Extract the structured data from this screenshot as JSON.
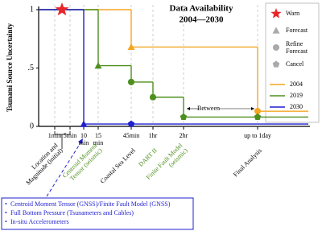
{
  "chart_data": {
    "type": "step",
    "title": [
      "Data Availability",
      "2004—2030"
    ],
    "y_label": "Tsunami Source Uncertainty",
    "categories": [
      "1min",
      "5min",
      "10 min",
      "15 min",
      "45min",
      "1hr",
      "2hr",
      "up to 1day"
    ],
    "ylim": [
      0,
      1
    ],
    "yticks": [
      0,
      {
        "value": 0.5,
        "label": ".5"
      },
      1
    ],
    "series": [
      {
        "name": "2004",
        "color": "#f5a623",
        "values": [
          1,
          1,
          1,
          1,
          0.68,
          0.68,
          0.68,
          0.13
        ],
        "markers": [
          null,
          null,
          null,
          null,
          "triangle",
          null,
          null,
          "circle"
        ]
      },
      {
        "name": "2019",
        "color": "#4e8f1e",
        "values": [
          1,
          1,
          1,
          0.52,
          0.38,
          0.25,
          0.08,
          0.08
        ],
        "markers": [
          null,
          null,
          null,
          "triangle",
          "circle",
          "circle",
          "pentagon",
          "pentagon"
        ]
      },
      {
        "name": "2030",
        "color": "#1f1fd0",
        "values": [
          1,
          1,
          0.02,
          0.02,
          0.02,
          0.02,
          0.02,
          0.02
        ],
        "markers": [
          "star",
          null,
          "triangle",
          null,
          "pentagon",
          null,
          null,
          null
        ]
      }
    ],
    "marker_legend": [
      {
        "label": "Warn",
        "shape": "star",
        "color": "#e8262a"
      },
      {
        "label": "Forecast",
        "shape": "triangle",
        "color": "#aaaaaa"
      },
      {
        "label": "Refine Forecast",
        "shape": "circle",
        "color": "#aaaaaa"
      },
      {
        "label": "Cancel",
        "shape": "pentagon",
        "color": "#aaaaaa"
      }
    ],
    "annotations": [
      {
        "category": 0,
        "lines": [
          "Location and",
          "Magnitude (initial)"
        ],
        "color": "#000000"
      },
      {
        "category": 3,
        "lines": [
          "Centroid Moment",
          "Tensor (seismic)"
        ],
        "color": "#4e8f1e"
      },
      {
        "category": 4,
        "lines": [
          "Coastal Sea Level"
        ],
        "color": "#000000"
      },
      {
        "category": 5,
        "lines": [
          "DART II"
        ],
        "color": "#4e8f1e"
      },
      {
        "category": 6,
        "lines": [
          "Finite Fault Model",
          "(seismic)"
        ],
        "color": "#4e8f1e"
      },
      {
        "category": 7,
        "lines": [
          "Final Analysis"
        ],
        "color": "#000000"
      }
    ],
    "between_label": "Between",
    "data_sources": [
      "Centroid Moment Tensor (GNSS)/Finite Fault Model (GNSS)",
      "Full Bottom Pressure (Tsunameters and Cables)",
      "In-situ Accelerometers"
    ]
  }
}
